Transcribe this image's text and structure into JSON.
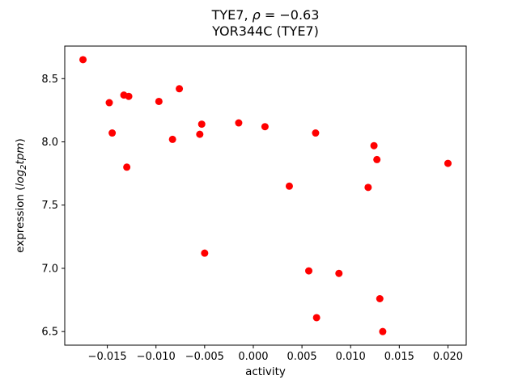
{
  "figure": {
    "title": {
      "prefix": "TYE7, ",
      "rho": "ρ",
      "rest": " = −0.63",
      "line2": "YOR344C (TYE7)"
    },
    "xlabel": "activity",
    "ylabel": {
      "prefix": "expression (",
      "italic1": "log",
      "subscript": "2",
      "italic2": "tpm",
      "suffix": ")"
    }
  },
  "chart_data": {
    "type": "scatter",
    "title": "TYE7, ρ = −0.63",
    "subtitle": "YOR344C (TYE7)",
    "xlabel": "activity",
    "ylabel": "expression (log2 tpm)",
    "marker_color": "#ff0000",
    "marker_radius_px": 4.5,
    "frame_color": "#000000",
    "grid": false,
    "legend": "none",
    "xlim": [
      -0.019375,
      0.021875
    ],
    "ylim": [
      6.3925,
      8.7575
    ],
    "xticks": [
      -0.015,
      -0.01,
      -0.005,
      0.0,
      0.005,
      0.01,
      0.015,
      0.02
    ],
    "xtick_labels": [
      "−0.015",
      "−0.010",
      "−0.005",
      "0.000",
      "0.005",
      "0.010",
      "0.015",
      "0.020"
    ],
    "yticks": [
      6.5,
      7.0,
      7.5,
      8.0,
      8.5
    ],
    "ytick_labels": [
      "6.5",
      "7.0",
      "7.5",
      "8.0",
      "8.5"
    ],
    "points": [
      [
        -0.0175,
        8.65
      ],
      [
        -0.0148,
        8.31
      ],
      [
        -0.0133,
        8.37
      ],
      [
        -0.0128,
        8.36
      ],
      [
        -0.0145,
        8.07
      ],
      [
        -0.013,
        7.8
      ],
      [
        -0.0097,
        8.32
      ],
      [
        -0.0076,
        8.42
      ],
      [
        -0.0083,
        8.02
      ],
      [
        -0.0053,
        8.14
      ],
      [
        -0.0055,
        8.06
      ],
      [
        -0.005,
        7.12
      ],
      [
        -0.0015,
        8.15
      ],
      [
        0.0012,
        8.12
      ],
      [
        0.0037,
        7.65
      ],
      [
        0.0057,
        6.98
      ],
      [
        0.0064,
        8.07
      ],
      [
        0.0065,
        6.61
      ],
      [
        0.0088,
        6.96
      ],
      [
        0.0118,
        7.64
      ],
      [
        0.0124,
        7.97
      ],
      [
        0.0127,
        7.86
      ],
      [
        0.013,
        6.76
      ],
      [
        0.0133,
        6.5
      ],
      [
        0.02,
        7.83
      ]
    ]
  }
}
